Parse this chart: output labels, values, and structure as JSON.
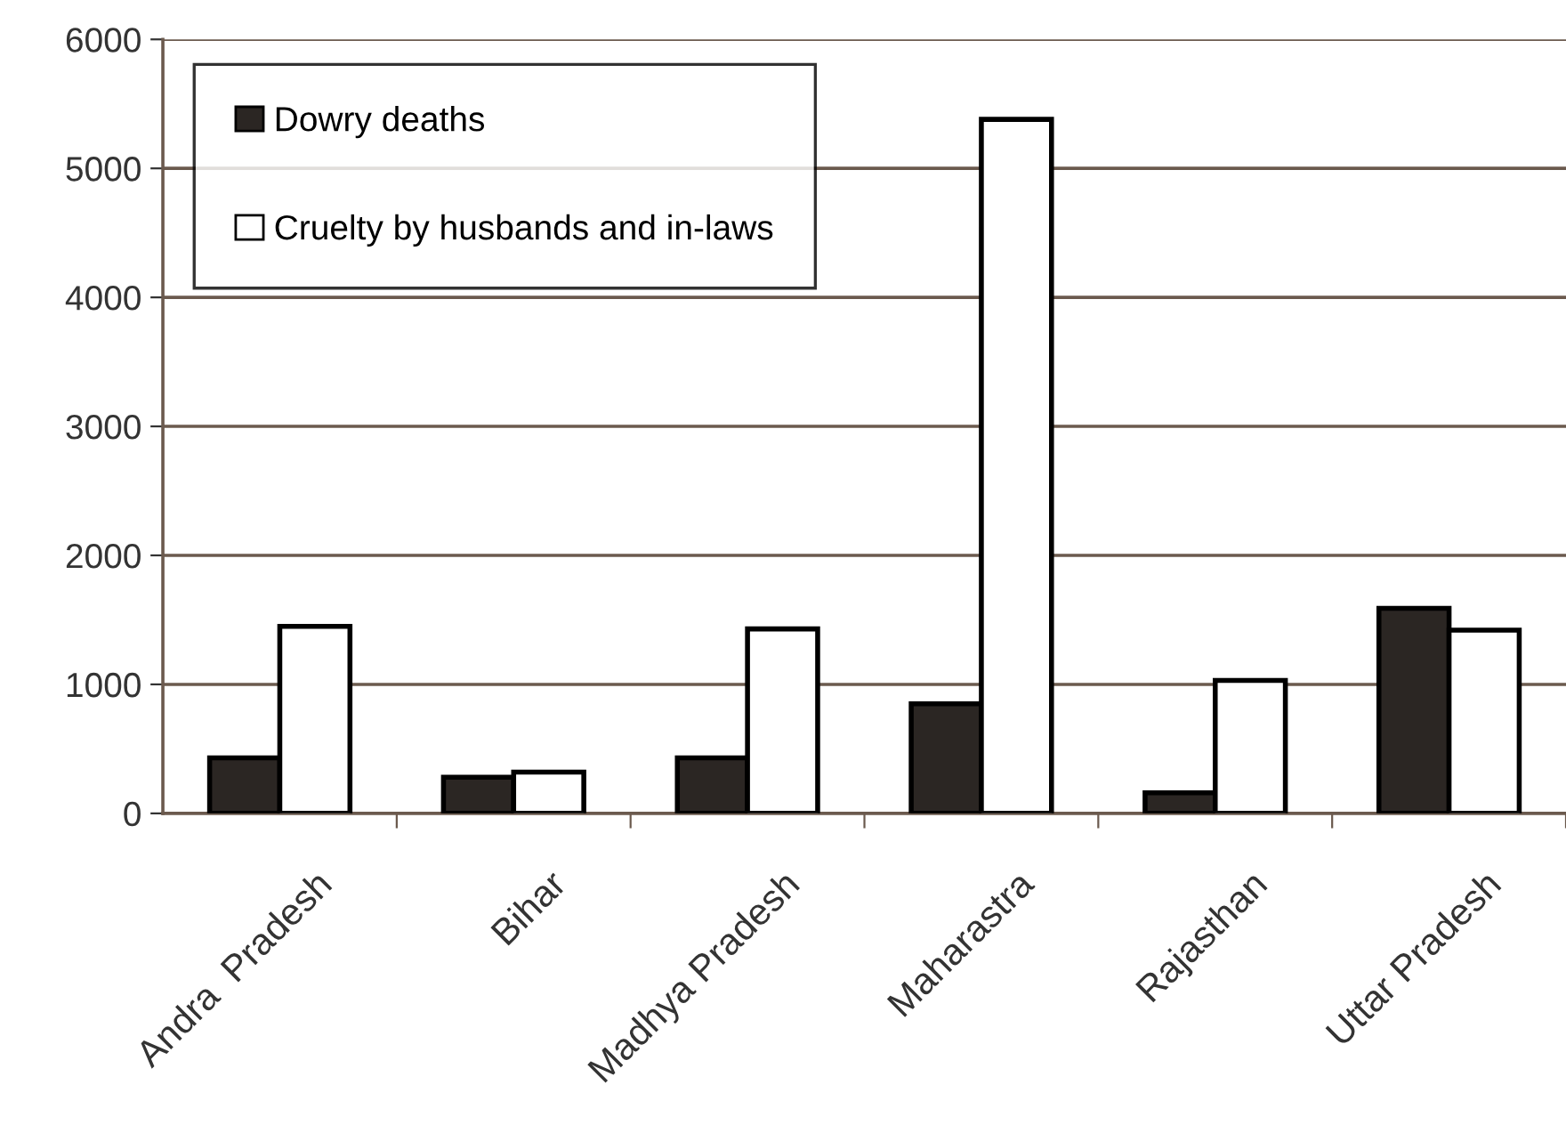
{
  "chart_data": {
    "type": "bar",
    "categories": [
      "Andra  Pradesh",
      "Bihar",
      "Madhya Pradesh",
      "Maharastra",
      "Rajasthan",
      "Uttar Pradesh"
    ],
    "series": [
      {
        "name": "Dowry deaths",
        "color": "#2b2623",
        "values": [
          430,
          280,
          430,
          850,
          160,
          1590
        ]
      },
      {
        "name": "Cruelty by husbands and in-laws",
        "color": "#ffffff",
        "values": [
          1450,
          320,
          1430,
          5380,
          1030,
          1420
        ]
      }
    ],
    "ylim": [
      0,
      6000
    ],
    "yticks": [
      0,
      1000,
      2000,
      3000,
      4000,
      5000,
      6000
    ],
    "grid": "y",
    "legend": "top left"
  }
}
